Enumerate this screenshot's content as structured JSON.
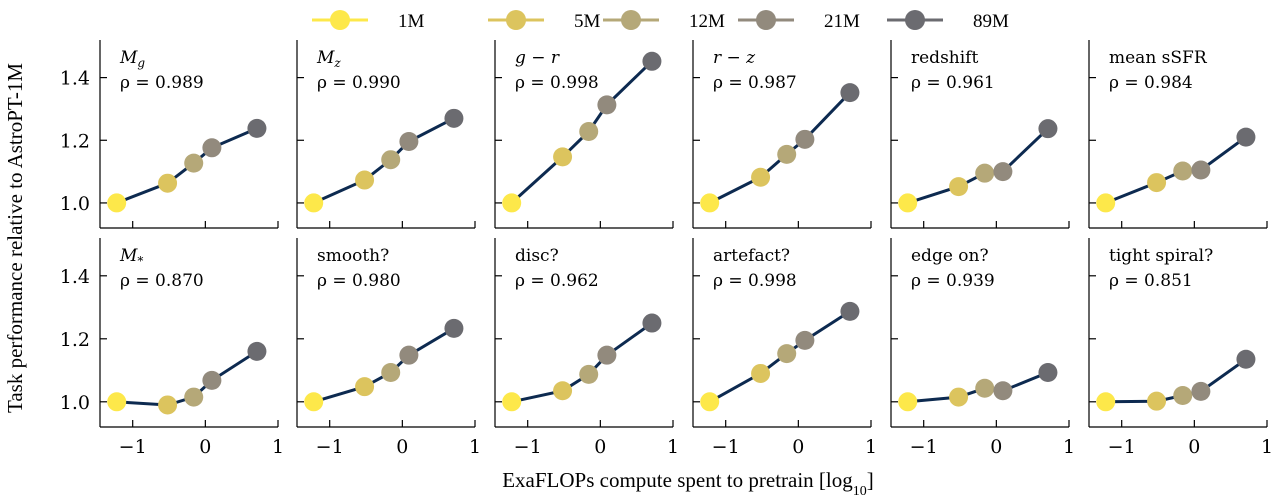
{
  "chart_data": {
    "type": "line",
    "xlabel": "ExaFLOPs compute spent to pretrain [log",
    "xlabel_sub": "10",
    "xlabel_close": "]",
    "ylabel": "Task performance relative to AstroPT-1M",
    "xlim": [
      -1.45,
      1.0
    ],
    "ylim": [
      0.92,
      1.52
    ],
    "xticks": [
      -1,
      0,
      1
    ],
    "xtick_labels": [
      "−1",
      "0",
      "1"
    ],
    "yticks": [
      1.0,
      1.2,
      1.4
    ],
    "ytick_labels": [
      "1.0",
      "1.2",
      "1.4"
    ],
    "grid": false,
    "legend_position": "top-center",
    "legend": [
      {
        "label": "1M",
        "color": "#fde84a"
      },
      {
        "label": "5M",
        "color": "#dcc45e"
      },
      {
        "label": "12M",
        "color": "#b5a878"
      },
      {
        "label": "21M",
        "color": "#928a7d"
      },
      {
        "label": "89M",
        "color": "#6b6b70"
      }
    ],
    "line_color": "#0d2a50",
    "x": [
      -1.22,
      -0.52,
      -0.16,
      0.09,
      0.71
    ],
    "panels": [
      {
        "title_var": "M",
        "title_sub": "g",
        "title": "",
        "rho": "ρ = 0.989",
        "y": [
          1.0,
          1.063,
          1.127,
          1.176,
          1.238
        ]
      },
      {
        "title_var": "M",
        "title_sub": "z",
        "title": "",
        "rho": "ρ = 0.990",
        "y": [
          1.0,
          1.073,
          1.138,
          1.196,
          1.27
        ]
      },
      {
        "title_var": "",
        "title_sub": "",
        "title": "g − r",
        "title_italic": true,
        "rho": "ρ = 0.998",
        "y": [
          1.0,
          1.147,
          1.228,
          1.313,
          1.452
        ]
      },
      {
        "title_var": "",
        "title_sub": "",
        "title": "r − z",
        "title_italic": true,
        "rho": "ρ = 0.987",
        "y": [
          1.0,
          1.082,
          1.155,
          1.203,
          1.352
        ]
      },
      {
        "title_var": "",
        "title_sub": "",
        "title": "redshift",
        "rho": "ρ = 0.961",
        "y": [
          1.0,
          1.052,
          1.095,
          1.1,
          1.237
        ]
      },
      {
        "title_var": "",
        "title_sub": "",
        "title": "mean sSFR",
        "rho": "ρ = 0.984",
        "y": [
          1.0,
          1.065,
          1.102,
          1.105,
          1.21
        ]
      },
      {
        "title_var": "M",
        "title_sub": "*",
        "title": "",
        "rho": "ρ = 0.870",
        "y": [
          1.0,
          0.99,
          1.015,
          1.068,
          1.16
        ]
      },
      {
        "title_var": "",
        "title_sub": "",
        "title": "smooth?",
        "rho": "ρ = 0.980",
        "y": [
          1.0,
          1.048,
          1.093,
          1.148,
          1.233
        ]
      },
      {
        "title_var": "",
        "title_sub": "",
        "title": "disc?",
        "rho": "ρ = 0.962",
        "y": [
          1.0,
          1.035,
          1.087,
          1.148,
          1.25
        ]
      },
      {
        "title_var": "",
        "title_sub": "",
        "title": "artefact?",
        "rho": "ρ = 0.998",
        "y": [
          1.0,
          1.09,
          1.153,
          1.195,
          1.287
        ]
      },
      {
        "title_var": "",
        "title_sub": "",
        "title": "edge on?",
        "rho": "ρ = 0.939",
        "y": [
          1.0,
          1.015,
          1.043,
          1.035,
          1.093
        ]
      },
      {
        "title_var": "",
        "title_sub": "",
        "title": "tight spiral?",
        "rho": "ρ = 0.851",
        "y": [
          1.0,
          1.002,
          1.02,
          1.033,
          1.135
        ]
      }
    ]
  }
}
